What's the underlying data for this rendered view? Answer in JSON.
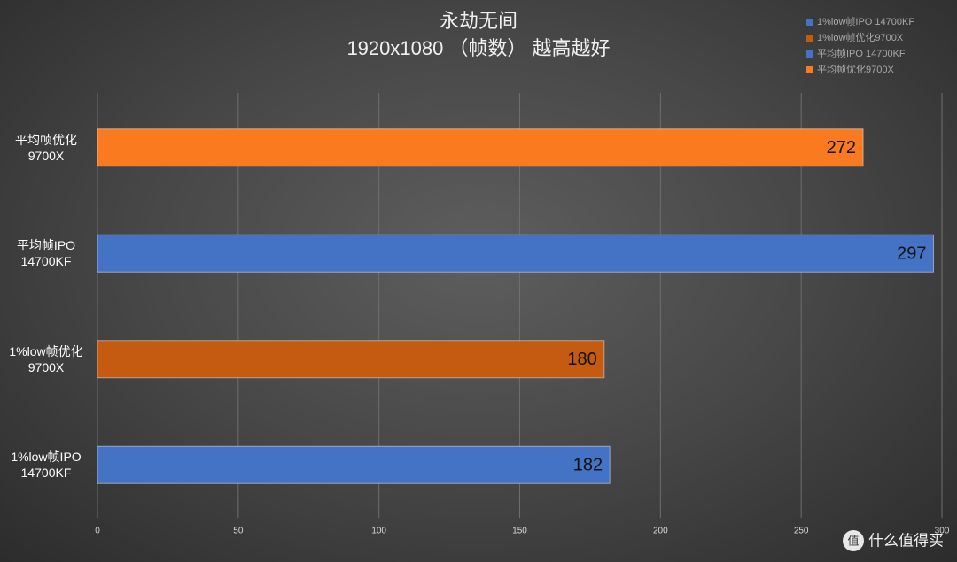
{
  "chart_data": {
    "type": "bar",
    "orientation": "horizontal",
    "title": "永劫无间",
    "subtitle": "1920x1080 （帧数） 越高越好",
    "categories": [
      "平均帧优化\n9700X",
      "平均帧IPO\n14700KF",
      "1%low帧优化\n9700X",
      "1%low帧IPO\n14700KF"
    ],
    "series": [
      {
        "name": "1%low帧IPO 14700KF",
        "color": "#4472c4",
        "values": [
          null,
          null,
          null,
          182
        ]
      },
      {
        "name": "1%low帧优化9700X",
        "color": "#c55a11",
        "values": [
          null,
          null,
          180,
          null
        ]
      },
      {
        "name": "平均帧IPO 14700KF",
        "color": "#4472c4",
        "values": [
          null,
          297,
          null,
          null
        ]
      },
      {
        "name": "平均帧优化9700X",
        "color": "#f97a1f",
        "values": [
          272,
          null,
          null,
          null
        ]
      }
    ],
    "xlim": [
      0,
      300
    ],
    "xticks": [
      0,
      50,
      100,
      150,
      200,
      250,
      300
    ],
    "grid": true,
    "legend": "top-right",
    "watermark": "什么值得买"
  }
}
